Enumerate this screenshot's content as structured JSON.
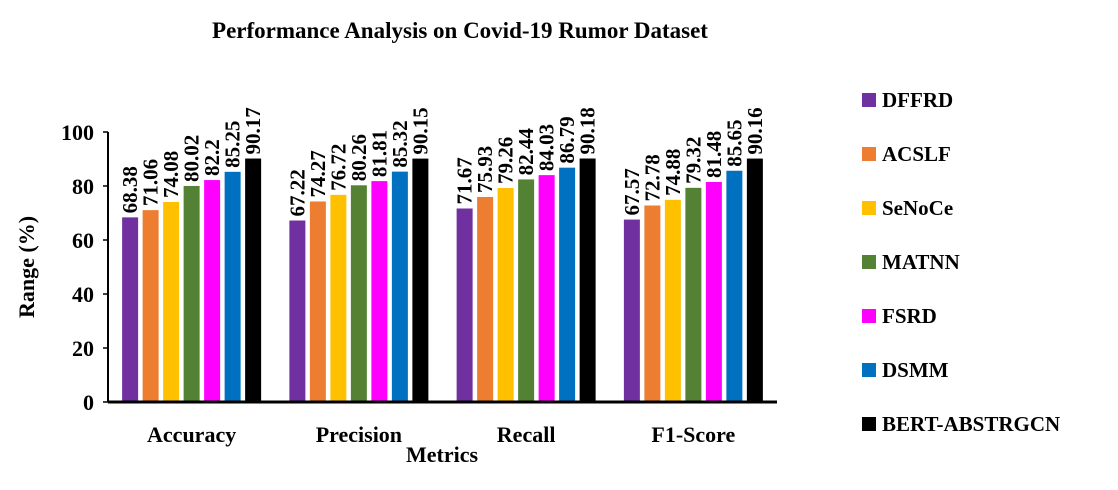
{
  "chart_data": {
    "type": "bar",
    "title": "Performance Analysis on Covid-19 Rumor Dataset",
    "x_label": "Metrics",
    "y_label": "Range (%)",
    "categories": [
      "Accuracy",
      "Precision",
      "Recall",
      "F1-Score"
    ],
    "series": [
      {
        "name": "DFFRD",
        "color": "#7030a0",
        "values": [
          68.38,
          67.22,
          71.67,
          67.57
        ]
      },
      {
        "name": "ACSLF",
        "color": "#ed7d31",
        "values": [
          71.06,
          74.27,
          75.93,
          72.78
        ]
      },
      {
        "name": "SeNoCe",
        "color": "#ffc000",
        "values": [
          74.08,
          76.72,
          79.26,
          74.88
        ]
      },
      {
        "name": "MATNN",
        "color": "#548235",
        "values": [
          80.02,
          80.26,
          82.44,
          79.32
        ]
      },
      {
        "name": "FSRD",
        "color": "#ff00ff",
        "values": [
          82.2,
          81.81,
          84.03,
          81.48
        ]
      },
      {
        "name": "DSMM",
        "color": "#0070c0",
        "values": [
          85.25,
          85.32,
          86.79,
          85.65
        ]
      },
      {
        "name": "BERT-ABSTRGCN",
        "color": "#000000",
        "values": [
          90.17,
          90.15,
          90.18,
          90.16
        ]
      }
    ],
    "ylim": [
      0,
      100
    ],
    "yticks": [
      0,
      20,
      40,
      60,
      80,
      100
    ],
    "legend": "right"
  }
}
